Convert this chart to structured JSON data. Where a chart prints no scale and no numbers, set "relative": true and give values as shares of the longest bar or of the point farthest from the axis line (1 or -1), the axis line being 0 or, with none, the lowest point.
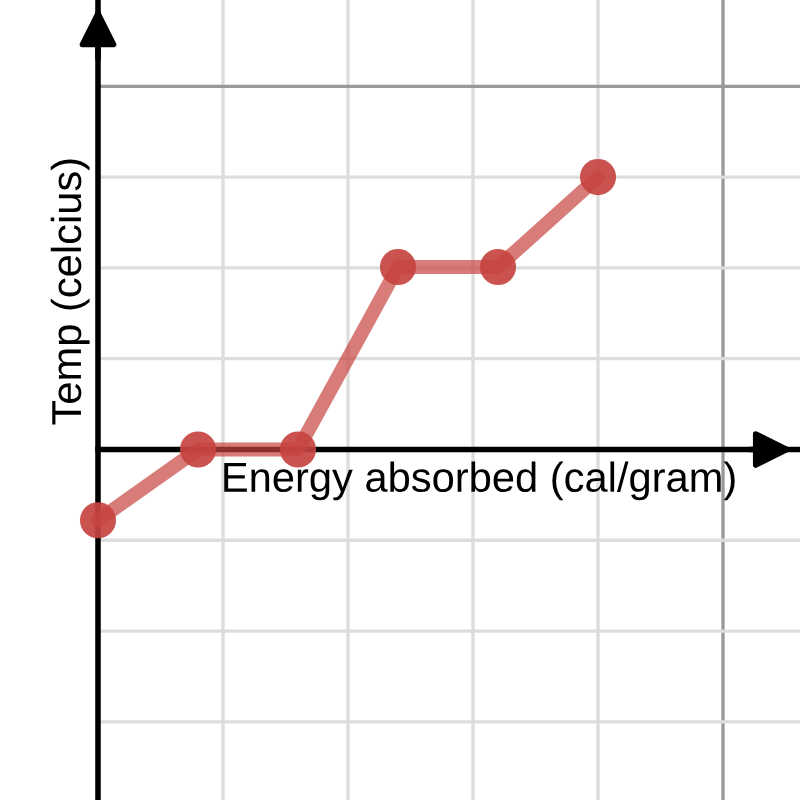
{
  "chart_data": {
    "type": "line",
    "relative": true,
    "tick_labels": false,
    "xlabel": "Energy absorbed (cal/gram)",
    "ylabel": "Temp (celcius)",
    "categories": [
      null,
      null,
      null,
      null,
      null,
      null
    ],
    "series": [
      {
        "color": "#c74440",
        "values": [
          -0.26,
          0,
          0,
          0.67,
          0.67,
          1
        ]
      }
    ],
    "marker": "circle",
    "line_style": "solid",
    "grid": true
  }
}
